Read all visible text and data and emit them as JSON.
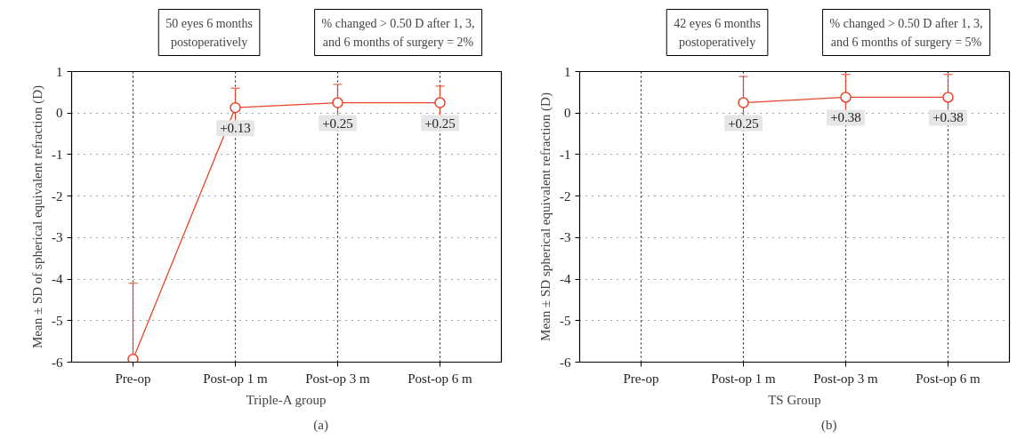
{
  "chart_data": [
    {
      "type": "line",
      "xlabel": "Triple-A group",
      "ylabel": "Mean ± SD of spherical equivalent refraction (D)",
      "categories": [
        "Pre-op",
        "Post-op 1 m",
        "Post-op 3 m",
        "Post-op 6 m"
      ],
      "ylim": [
        -6,
        1
      ],
      "yticks": [
        -6,
        -5,
        -4,
        -3,
        -2,
        -1,
        0,
        1
      ],
      "grid": true,
      "marker": "circle",
      "line_style": "solid",
      "series": [
        {
          "color": "#e8452c",
          "values": [
            -5.93,
            0.13,
            0.25,
            0.25
          ],
          "errors": [
            [
              -5.93,
              -4.1
            ],
            [
              -0.34,
              0.6
            ],
            [
              -0.19,
              0.69
            ],
            [
              -0.15,
              0.65
            ]
          ],
          "value_labels": [
            null,
            "+0.13",
            "+0.25",
            "+0.25"
          ]
        }
      ],
      "annotations": [
        "50 eyes 6 months\npostoperatively",
        "% changed > 0.50 D after 1, 3,\nand 6 months of surgery = 2%",
        "(a)"
      ]
    },
    {
      "type": "line",
      "xlabel": "TS Group",
      "ylabel": "Mean ± SD spherical equivalent refraction (D)",
      "categories": [
        "Pre-op",
        "Post-op 1 m",
        "Post-op 3 m",
        "Post-op 6 m"
      ],
      "ylim": [
        -6,
        1
      ],
      "yticks": [
        -6,
        -5,
        -4,
        -3,
        -2,
        -1,
        0,
        1
      ],
      "grid": true,
      "marker": "circle",
      "line_style": "solid",
      "series": [
        {
          "color": "#e8452c",
          "values": [
            null,
            0.25,
            0.38,
            0.38
          ],
          "errors": [
            null,
            [
              -0.38,
              0.88
            ],
            [
              -0.18,
              0.93
            ],
            [
              -0.18,
              0.93
            ]
          ],
          "value_labels": [
            null,
            "+0.25",
            "+0.38",
            "+0.38"
          ]
        }
      ],
      "annotations": [
        "42 eyes 6 months\npostoperatively",
        "% changed > 0.50 D after 1, 3,\nand 6 months of surgery = 5%",
        "(b)"
      ]
    }
  ]
}
